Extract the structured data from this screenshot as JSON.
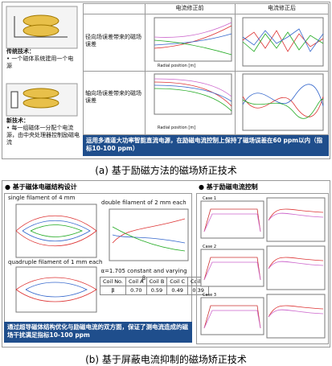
{
  "panel_a": {
    "old_tech": {
      "title": "传统技术：",
      "bullet": "一个磁体系统建用一个电源"
    },
    "new_tech": {
      "title": "新技术：",
      "bullet": "每一组磁体一分配个电流源，由中央处理器控制励磁电流"
    },
    "table": {
      "headers": [
        "电流修正前",
        "电流修正后"
      ],
      "rows": [
        "径向场误差带来的磁场误差",
        "轴向场误差带来的磁场误差"
      ],
      "axis_label": "Radial position [m]"
    },
    "banner": "运用多通道大功率智能直流电源，在励磁电流控制上保持了磁场误差在60 ppm以内（指标10-100 ppm）",
    "caption": "(a) 基于励磁方法的磁场矫正技术"
  },
  "panel_b": {
    "left": {
      "heading": "基于磁体电磁结构设计",
      "plot_titles": [
        "single filament of 4 mm",
        "double filament of 2 mm each",
        "quadruple filament of 1 mm each"
      ],
      "table": {
        "title": "α=1.705 constant and varying β",
        "header": [
          "Coil No.",
          "Coil A",
          "Coil B",
          "Coil C",
          "Coil D"
        ],
        "row": [
          "β",
          "0.70",
          "0.59",
          "0.49",
          "0.39"
        ]
      },
      "banner": "通过超导磁体结构优化与励磁电流的双方面，保证了测电流造成的磁场干扰满足指标10-100 ppm"
    },
    "right": {
      "heading": "基于励磁电流控制",
      "cases": [
        "Case 1",
        "Case 2",
        "Case 3"
      ]
    },
    "caption": "(b) 基于屏蔽电流抑制的磁场矫正技术"
  }
}
